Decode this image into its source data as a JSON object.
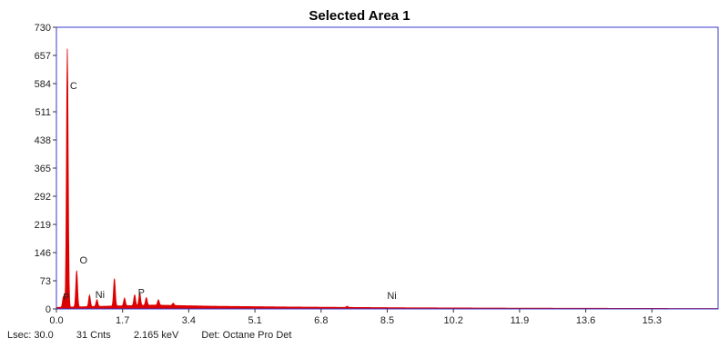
{
  "chart_data": {
    "type": "area",
    "title": "Selected Area 1",
    "xlabel": "",
    "ylabel": "",
    "xlim": [
      0.0,
      17.0
    ],
    "ylim": [
      0,
      730
    ],
    "x_ticks": [
      0.0,
      1.7,
      3.4,
      5.1,
      6.8,
      8.5,
      10.2,
      11.9,
      13.6,
      15.3
    ],
    "x_tick_labels": [
      "0.0",
      "1.7",
      "3.4",
      "5.1",
      "6.8",
      "8.5",
      "10.2",
      "11.9",
      "13.6",
      "15.3"
    ],
    "y_ticks": [
      0,
      73,
      146,
      219,
      292,
      365,
      438,
      511,
      584,
      657,
      730
    ],
    "y_tick_labels": [
      "0",
      "73",
      "146",
      "219",
      "292",
      "365",
      "438",
      "511",
      "584",
      "657",
      "730"
    ],
    "series": [
      {
        "color": "#dd0000",
        "peaks": [
          {
            "x": 0.18,
            "y": 28
          },
          {
            "x": 0.28,
            "y": 670
          },
          {
            "x": 0.52,
            "y": 95
          },
          {
            "x": 0.85,
            "y": 30
          },
          {
            "x": 1.04,
            "y": 18
          },
          {
            "x": 1.49,
            "y": 72
          },
          {
            "x": 1.75,
            "y": 20
          },
          {
            "x": 2.01,
            "y": 28
          },
          {
            "x": 2.14,
            "y": 33
          },
          {
            "x": 2.31,
            "y": 20
          },
          {
            "x": 2.62,
            "y": 14
          },
          {
            "x": 3.0,
            "y": 6
          },
          {
            "x": 7.47,
            "y": 3
          }
        ],
        "background": [
          {
            "x": 0.0,
            "y": 4
          },
          {
            "x": 2.5,
            "y": 10
          },
          {
            "x": 4.0,
            "y": 7
          },
          {
            "x": 6.0,
            "y": 5
          },
          {
            "x": 9.0,
            "y": 3
          },
          {
            "x": 12.0,
            "y": 2
          },
          {
            "x": 17.0,
            "y": 1
          }
        ]
      }
    ],
    "peak_labels": [
      {
        "text": "C",
        "x": 0.3,
        "y": 570
      },
      {
        "text": "O",
        "x": 0.55,
        "y": 118
      },
      {
        "text": "P",
        "x": 0.12,
        "y": 22
      },
      {
        "text": "Ni",
        "x": 0.95,
        "y": 28
      },
      {
        "text": "P",
        "x": 2.05,
        "y": 34
      },
      {
        "text": "Ni",
        "x": 8.45,
        "y": 26
      }
    ],
    "grid": false,
    "legend": "none"
  },
  "status": {
    "lsec": "Lsec: 30.0",
    "counts": "31 Cnts",
    "energy": "2.165 keV",
    "detector": "Det: Octane Pro Det"
  }
}
